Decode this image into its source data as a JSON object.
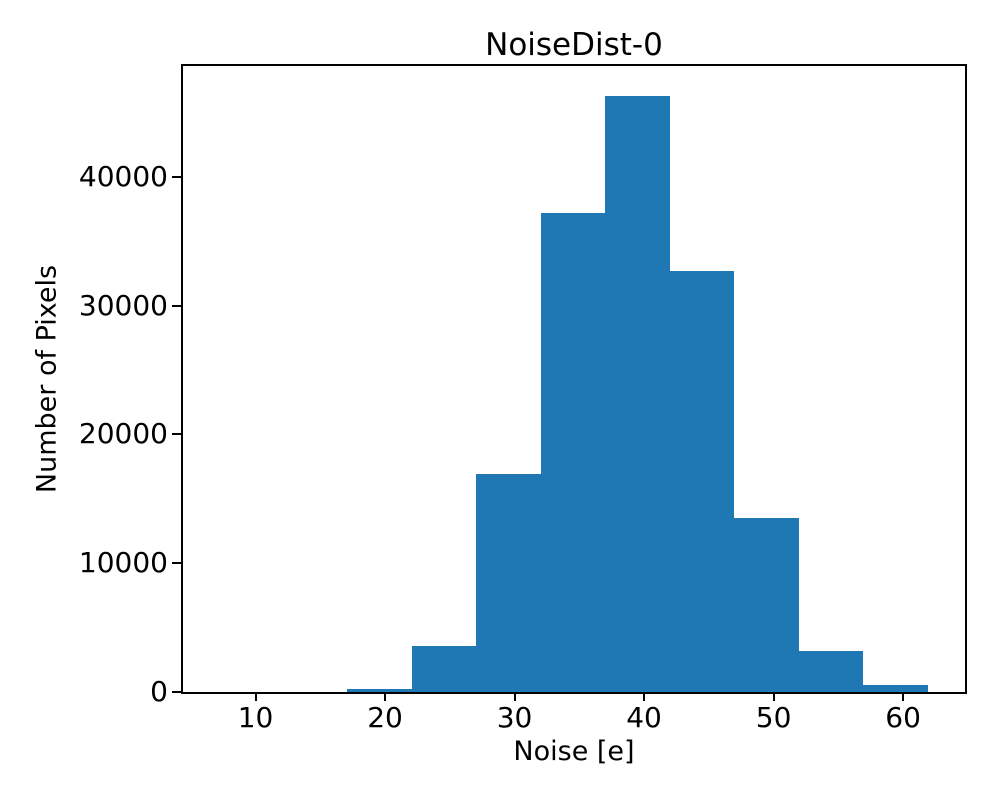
{
  "chart_data": {
    "type": "bar",
    "subtype": "histogram",
    "title": "NoiseDist-0",
    "xlabel": "Noise [e]",
    "ylabel": "Number of Pixels",
    "bar_color": "#1f77b4",
    "axis_color": "#000000",
    "background_color": "#ffffff",
    "grid": false,
    "legend": false,
    "bin_edges": [
      7.1,
      12.08,
      17.06,
      22.05,
      27.03,
      32.01,
      36.99,
      41.98,
      46.96,
      51.94,
      56.92,
      61.9
    ],
    "counts": [
      0,
      0,
      220,
      3550,
      16900,
      37200,
      46300,
      32700,
      13500,
      3150,
      560
    ],
    "xlim": [
      4.4,
      64.78
    ],
    "ylim": [
      0,
      48600
    ],
    "xticks": [
      10,
      20,
      30,
      40,
      50,
      60
    ],
    "yticks": [
      0,
      10000,
      20000,
      30000,
      40000
    ]
  }
}
